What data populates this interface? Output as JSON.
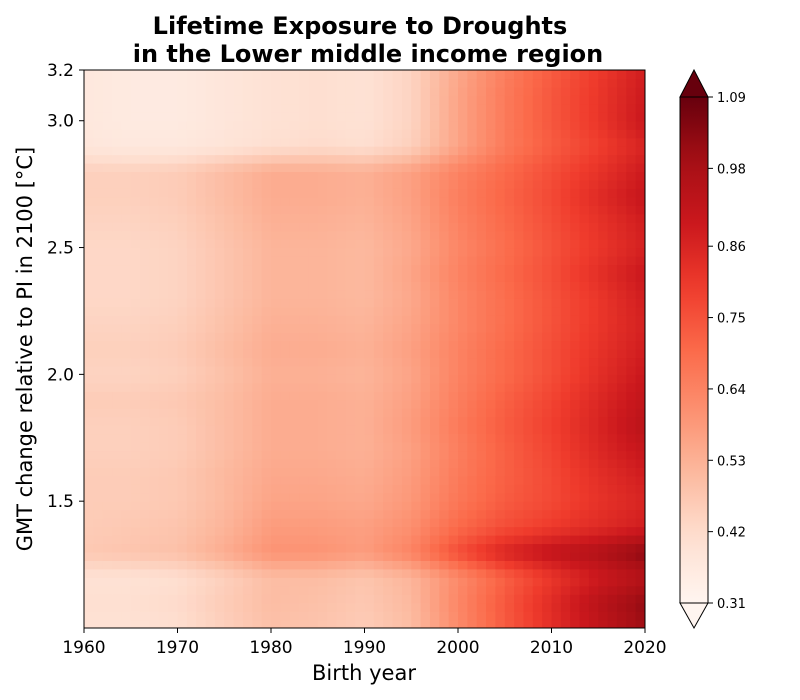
{
  "chart_data": {
    "type": "heatmap",
    "title_lines": [
      "Lifetime Exposure to Droughts",
      "in the Lower middle income region"
    ],
    "xlabel": "Birth year",
    "ylabel": "GMT change relative to PI in 2100 [°C]",
    "xlim": [
      1960,
      2020
    ],
    "ylim": [
      1.0,
      3.2
    ],
    "xticks": [
      1960,
      1970,
      1980,
      1990,
      2000,
      2010,
      2020
    ],
    "xtick_labels": [
      "1960",
      "1970",
      "1980",
      "1990",
      "2000",
      "2010",
      "2020"
    ],
    "yticks": [
      1.5,
      2.0,
      2.5,
      3.0,
      3.2
    ],
    "ytick_labels": [
      "1.5",
      "2.0",
      "2.5",
      "3.0",
      "3.2"
    ],
    "colormap": "Reds",
    "colorbar": {
      "min": 0.31,
      "max": 1.09,
      "ticks": [
        0.31,
        0.42,
        0.53,
        0.64,
        0.75,
        0.86,
        0.98,
        1.09
      ],
      "tick_labels": [
        "0.31",
        "0.42",
        "0.53",
        "0.64",
        "0.75",
        "0.86",
        "0.98",
        "1.09"
      ],
      "extend": "both"
    },
    "x": [
      1960,
      1965,
      1970,
      1975,
      1980,
      1985,
      1990,
      1995,
      2000,
      2005,
      2010,
      2015,
      2020
    ],
    "y": [
      1.0,
      1.1,
      1.2,
      1.3,
      1.4,
      1.5,
      1.6,
      1.7,
      1.8,
      1.9,
      2.0,
      2.1,
      2.2,
      2.3,
      2.4,
      2.5,
      2.6,
      2.7,
      2.8,
      2.9,
      3.0,
      3.1,
      3.2
    ],
    "z": [
      [
        0.4,
        0.4,
        0.41,
        0.45,
        0.49,
        0.48,
        0.46,
        0.5,
        0.62,
        0.73,
        0.83,
        0.92,
        1.0
      ],
      [
        0.41,
        0.41,
        0.42,
        0.46,
        0.5,
        0.49,
        0.47,
        0.51,
        0.63,
        0.74,
        0.84,
        0.94,
        1.02
      ],
      [
        0.4,
        0.4,
        0.41,
        0.45,
        0.5,
        0.5,
        0.48,
        0.52,
        0.62,
        0.72,
        0.81,
        0.89,
        0.95
      ],
      [
        0.47,
        0.48,
        0.49,
        0.54,
        0.6,
        0.6,
        0.58,
        0.64,
        0.76,
        0.86,
        0.92,
        0.96,
        1.03
      ],
      [
        0.46,
        0.47,
        0.48,
        0.52,
        0.58,
        0.58,
        0.57,
        0.61,
        0.7,
        0.76,
        0.8,
        0.84,
        0.88
      ],
      [
        0.46,
        0.46,
        0.47,
        0.51,
        0.56,
        0.56,
        0.55,
        0.59,
        0.67,
        0.73,
        0.77,
        0.82,
        0.86
      ],
      [
        0.46,
        0.46,
        0.47,
        0.51,
        0.55,
        0.55,
        0.54,
        0.58,
        0.66,
        0.72,
        0.77,
        0.83,
        0.88
      ],
      [
        0.45,
        0.45,
        0.46,
        0.5,
        0.54,
        0.54,
        0.53,
        0.57,
        0.65,
        0.72,
        0.78,
        0.85,
        0.91
      ],
      [
        0.45,
        0.45,
        0.46,
        0.5,
        0.54,
        0.54,
        0.53,
        0.58,
        0.66,
        0.73,
        0.79,
        0.86,
        0.94
      ],
      [
        0.46,
        0.46,
        0.47,
        0.5,
        0.54,
        0.54,
        0.53,
        0.57,
        0.65,
        0.72,
        0.78,
        0.85,
        0.92
      ],
      [
        0.44,
        0.44,
        0.45,
        0.49,
        0.53,
        0.53,
        0.52,
        0.56,
        0.64,
        0.7,
        0.76,
        0.83,
        0.9
      ],
      [
        0.45,
        0.45,
        0.46,
        0.5,
        0.54,
        0.54,
        0.53,
        0.57,
        0.64,
        0.7,
        0.76,
        0.82,
        0.88
      ],
      [
        0.44,
        0.44,
        0.45,
        0.49,
        0.53,
        0.53,
        0.52,
        0.56,
        0.63,
        0.69,
        0.75,
        0.81,
        0.87
      ],
      [
        0.43,
        0.43,
        0.44,
        0.48,
        0.52,
        0.52,
        0.51,
        0.55,
        0.63,
        0.69,
        0.75,
        0.81,
        0.88
      ],
      [
        0.43,
        0.43,
        0.44,
        0.48,
        0.52,
        0.52,
        0.51,
        0.56,
        0.64,
        0.7,
        0.76,
        0.83,
        0.9
      ],
      [
        0.43,
        0.43,
        0.44,
        0.48,
        0.52,
        0.52,
        0.51,
        0.55,
        0.63,
        0.69,
        0.75,
        0.81,
        0.87
      ],
      [
        0.44,
        0.44,
        0.45,
        0.49,
        0.53,
        0.53,
        0.52,
        0.56,
        0.64,
        0.7,
        0.76,
        0.82,
        0.88
      ],
      [
        0.45,
        0.45,
        0.46,
        0.5,
        0.54,
        0.54,
        0.53,
        0.57,
        0.65,
        0.71,
        0.77,
        0.84,
        0.91
      ],
      [
        0.45,
        0.45,
        0.46,
        0.5,
        0.54,
        0.54,
        0.53,
        0.57,
        0.64,
        0.7,
        0.76,
        0.82,
        0.89
      ],
      [
        0.38,
        0.37,
        0.37,
        0.39,
        0.41,
        0.42,
        0.41,
        0.45,
        0.56,
        0.66,
        0.73,
        0.79,
        0.86
      ],
      [
        0.37,
        0.36,
        0.36,
        0.38,
        0.4,
        0.41,
        0.4,
        0.44,
        0.56,
        0.66,
        0.74,
        0.81,
        0.9
      ],
      [
        0.37,
        0.36,
        0.36,
        0.38,
        0.4,
        0.41,
        0.4,
        0.44,
        0.56,
        0.66,
        0.74,
        0.81,
        0.89
      ],
      [
        0.37,
        0.36,
        0.36,
        0.38,
        0.4,
        0.41,
        0.4,
        0.44,
        0.55,
        0.65,
        0.73,
        0.8,
        0.88
      ]
    ]
  }
}
